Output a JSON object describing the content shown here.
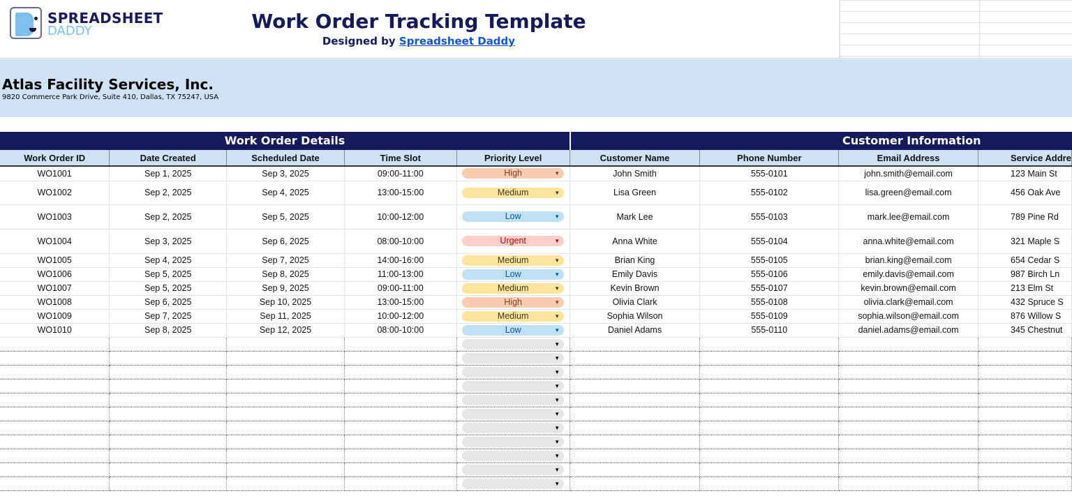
{
  "brand": {
    "line1": "SPREADSHEET",
    "line2": "DADDY"
  },
  "header": {
    "title": "Work Order Tracking Template",
    "designed_by": "Designed by",
    "designer_link": "Spreadsheet Daddy"
  },
  "company": {
    "name": "Atlas Facility Services, Inc.",
    "address": "9820 Commerce Park Drive, Suite 410, Dallas, TX 75247, USA"
  },
  "sections": {
    "details": "Work Order Details",
    "customer": "Customer Information"
  },
  "columns": [
    "Work Order ID",
    "Date Created",
    "Scheduled Date",
    "Time Slot",
    "Priority Level",
    "Customer Name",
    "Phone Number",
    "Email Address",
    "Service Addre"
  ],
  "priority_colors": {
    "High": {
      "bg": "#f9cbb0",
      "fg": "#8a3c1c"
    },
    "Medium": {
      "bg": "#fde49c",
      "fg": "#473821"
    },
    "Low": {
      "bg": "#bfe1f6",
      "fg": "#0a53a8"
    },
    "Urgent": {
      "bg": "#ffcfc9",
      "fg": "#b10202"
    },
    "": {
      "bg": "#e6e6e6",
      "fg": "#000"
    }
  },
  "rows": [
    [
      "WO1001",
      "Sep 1, 2025",
      "Sep 3, 2025",
      "09:00-11:00",
      "High",
      "John Smith",
      "555-0101",
      "john.smith@email.com",
      "123 Main St"
    ],
    [
      "WO1002",
      "Sep 2, 2025",
      "Sep 4, 2025",
      "13:00-15:00",
      "Medium",
      "Lisa Green",
      "555-0102",
      "lisa.green@email.com",
      "456 Oak Ave"
    ],
    [
      "WO1003",
      "Sep 2, 2025",
      "Sep 5, 2025",
      "10:00-12:00",
      "Low",
      "Mark Lee",
      "555-0103",
      "mark.lee@email.com",
      "789 Pine Rd"
    ],
    [
      "WO1004",
      "Sep 3, 2025",
      "Sep 6, 2025",
      "08:00-10:00",
      "Urgent",
      "Anna White",
      "555-0104",
      "anna.white@email.com",
      "321 Maple S"
    ],
    [
      "WO1005",
      "Sep 4, 2025",
      "Sep 7, 2025",
      "14:00-16:00",
      "Medium",
      "Brian King",
      "555-0105",
      "brian.king@email.com",
      "654 Cedar S"
    ],
    [
      "WO1006",
      "Sep 5, 2025",
      "Sep 8, 2025",
      "11:00-13:00",
      "Low",
      "Emily Davis",
      "555-0106",
      "emily.davis@email.com",
      "987 Birch Ln"
    ],
    [
      "WO1007",
      "Sep 5, 2025",
      "Sep 9, 2025",
      "09:00-11:00",
      "Medium",
      "Kevin Brown",
      "555-0107",
      "kevin.brown@email.com",
      "213 Elm St"
    ],
    [
      "WO1008",
      "Sep 6, 2025",
      "Sep 10, 2025",
      "13:00-15:00",
      "High",
      "Olivia Clark",
      "555-0108",
      "olivia.clark@email.com",
      "432 Spruce S"
    ],
    [
      "WO1009",
      "Sep 7, 2025",
      "Sep 11, 2025",
      "10:00-12:00",
      "Medium",
      "Sophia Wilson",
      "555-0109",
      "sophia.wilson@email.com",
      "876 Willow S"
    ],
    [
      "WO1010",
      "Sep 8, 2025",
      "Sep 12, 2025",
      "08:00-10:00",
      "Low",
      "Daniel Adams",
      "555-0110",
      "daniel.adams@email.com",
      "345 Chestnut"
    ]
  ]
}
